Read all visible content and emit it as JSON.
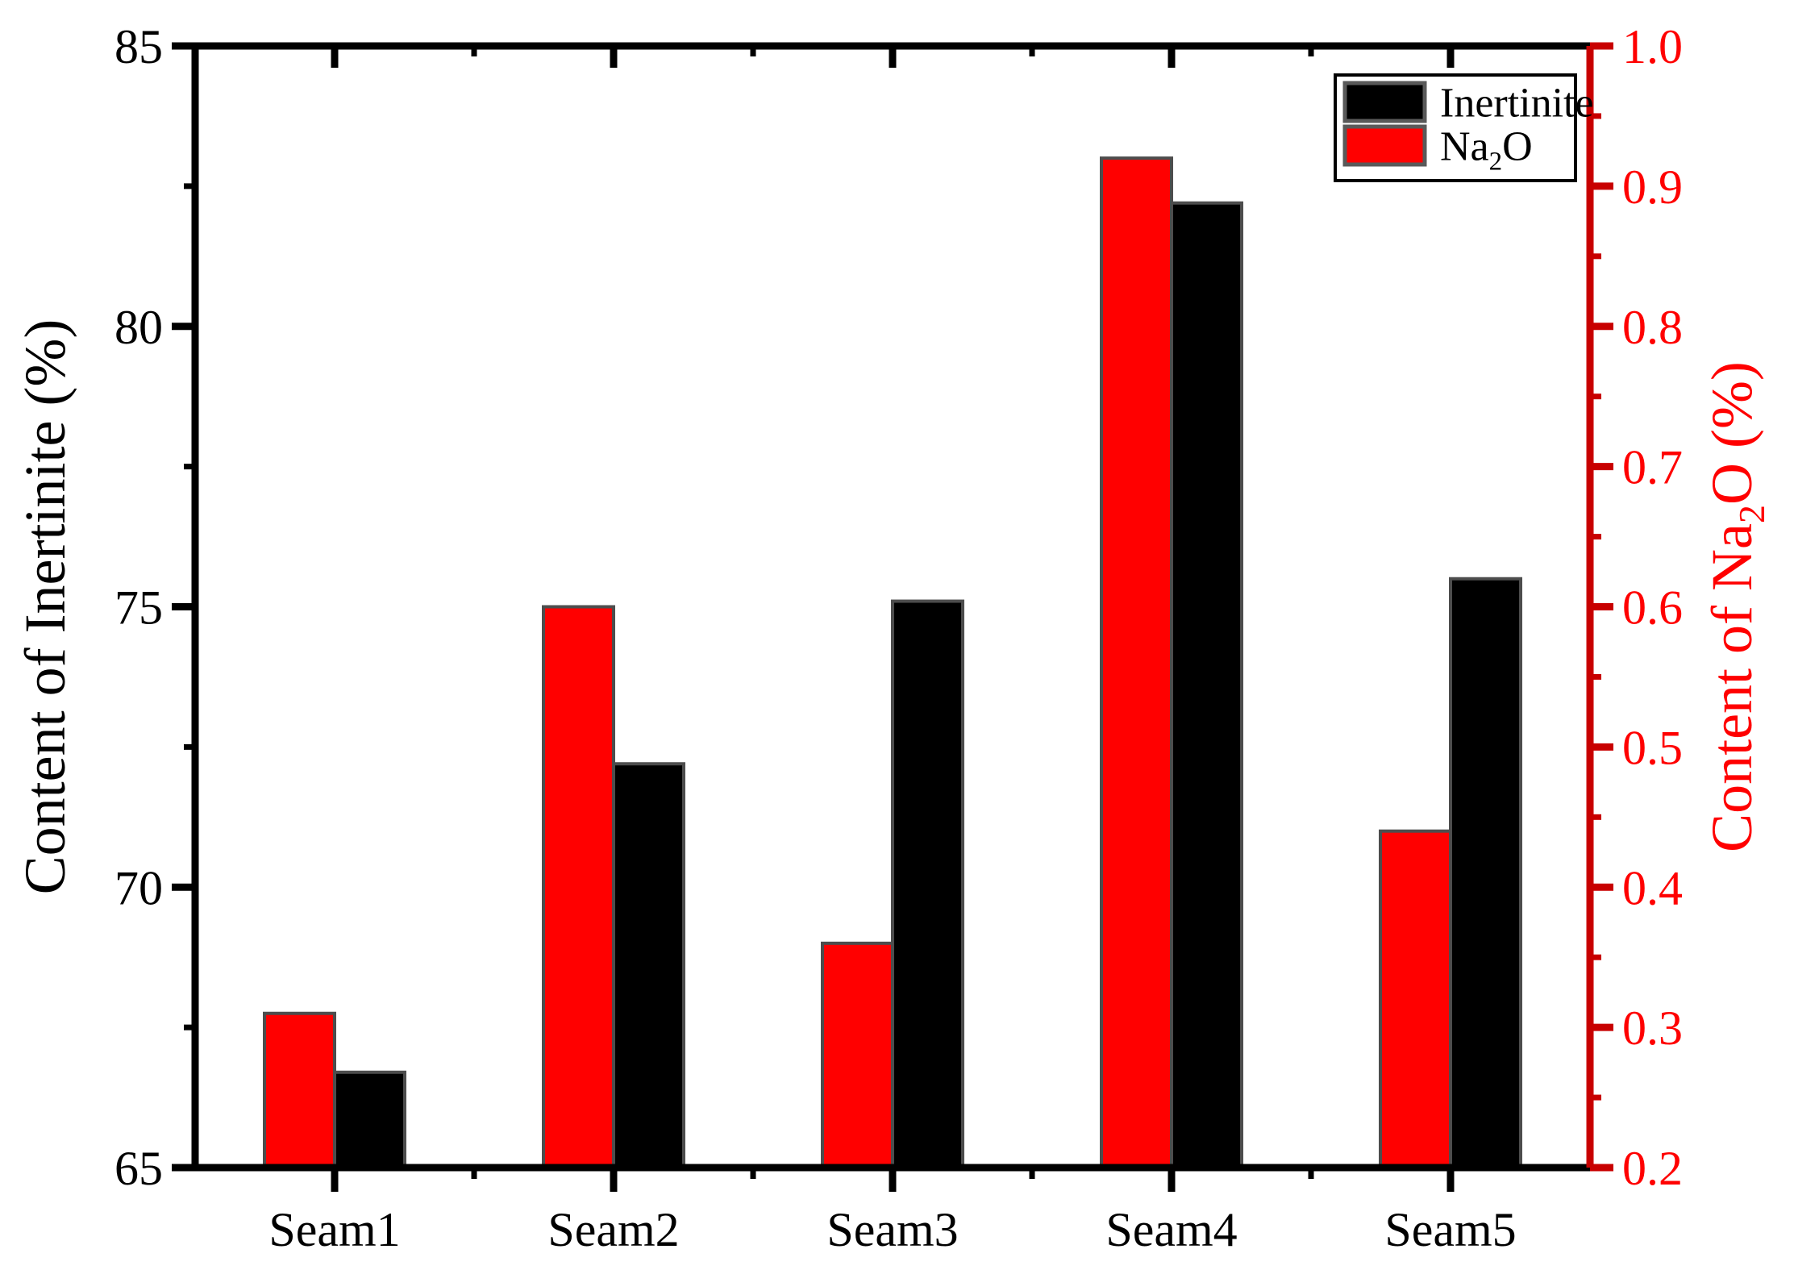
{
  "chart_data": {
    "type": "bar",
    "title": "",
    "categories": [
      "Seam1",
      "Seam2",
      "Seam3",
      "Seam4",
      "Seam5"
    ],
    "series": [
      {
        "name": "Inertinite",
        "axis": "left",
        "color": "#000000",
        "values": [
          66.7,
          72.2,
          75.1,
          82.2,
          75.5
        ]
      },
      {
        "name": "Na2O",
        "axis": "right",
        "color": "#ff0000",
        "values": [
          0.31,
          0.6,
          0.36,
          0.92,
          0.44
        ]
      }
    ],
    "axes": {
      "left": {
        "title": "Content of Inertinite (%)",
        "min": 65,
        "max": 85,
        "major_step": 5,
        "minor_step": 2.5,
        "ticks": [
          "65",
          "70",
          "75",
          "80",
          "85"
        ],
        "line_color": "#000000",
        "label_color": "#000000"
      },
      "right": {
        "title_parts": [
          {
            "t": "Content of Na"
          },
          {
            "t": "2",
            "sub": true
          },
          {
            "t": "O (%)"
          }
        ],
        "min": 0.2,
        "max": 1.0,
        "major_step": 0.1,
        "minor_step": 0.05,
        "ticks": [
          "0.2",
          "0.3",
          "0.4",
          "0.5",
          "0.6",
          "0.7",
          "0.8",
          "0.9",
          "1.0"
        ],
        "line_color": "#c80000",
        "label_color": "#ff0000"
      },
      "bottom": {
        "line_color": "#000000",
        "label_color": "#000000"
      }
    },
    "legend": {
      "position": "top-right",
      "border_color": "#000000",
      "background": "#ffffff",
      "swatch_border": "#595959",
      "items": [
        {
          "text": "Inertinite",
          "parts": [
            {
              "t": "Inertinite"
            }
          ],
          "color": "#000000"
        },
        {
          "text": "Na2O",
          "parts": [
            {
              "t": "Na"
            },
            {
              "t": "2",
              "sub": true
            },
            {
              "t": "O"
            }
          ],
          "color": "#ff0000"
        }
      ]
    },
    "bar_stroke": "#4d4d4d",
    "layout_hints": {
      "grid": false,
      "background": "#ffffff",
      "left_ylim": [
        65,
        85
      ],
      "right_ylim": [
        0.2,
        1.0
      ],
      "bars_per_category": 2,
      "bar_order": [
        "Na2O",
        "Inertinite"
      ]
    }
  }
}
